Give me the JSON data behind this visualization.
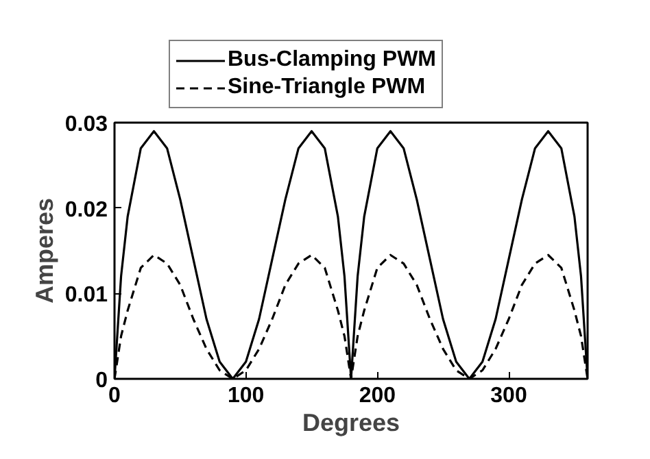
{
  "chart_data": {
    "type": "line",
    "xlabel": "Degrees",
    "ylabel": "Amperes",
    "x": [
      0,
      5,
      10,
      20,
      30,
      40,
      50,
      60,
      70,
      80,
      90,
      100,
      110,
      120,
      130,
      140,
      150,
      160,
      170,
      175,
      180,
      185,
      190,
      200,
      210,
      220,
      230,
      240,
      250,
      260,
      270,
      280,
      290,
      300,
      310,
      320,
      330,
      340,
      350,
      355,
      360
    ],
    "series": [
      {
        "name": "Bus-Clamping PWM",
        "color": "#000000",
        "line_style": "solid",
        "values": [
          0,
          0.012,
          0.019,
          0.027,
          0.029,
          0.027,
          0.021,
          0.014,
          0.007,
          0.002,
          0,
          0.002,
          0.007,
          0.014,
          0.021,
          0.027,
          0.029,
          0.027,
          0.019,
          0.012,
          0,
          0.012,
          0.019,
          0.027,
          0.029,
          0.027,
          0.021,
          0.014,
          0.007,
          0.002,
          0,
          0.002,
          0.007,
          0.014,
          0.021,
          0.027,
          0.029,
          0.027,
          0.019,
          0.012,
          0
        ]
      },
      {
        "name": "Sine-Triangle PWM",
        "color": "#000000",
        "line_style": "dashed",
        "values": [
          0,
          0.005,
          0.008,
          0.013,
          0.0145,
          0.0135,
          0.011,
          0.007,
          0.0035,
          0.001,
          0,
          0.001,
          0.0035,
          0.007,
          0.011,
          0.0135,
          0.0145,
          0.013,
          0.008,
          0.005,
          0,
          0.005,
          0.008,
          0.013,
          0.0145,
          0.0135,
          0.011,
          0.007,
          0.0035,
          0.001,
          0,
          0.001,
          0.0035,
          0.007,
          0.011,
          0.0135,
          0.0145,
          0.013,
          0.008,
          0.005,
          0
        ]
      }
    ],
    "xlim": [
      0,
      360
    ],
    "ylim": [
      0,
      0.03
    ],
    "xticks": [
      0,
      100,
      200,
      300
    ],
    "yticks": [
      0,
      0.01,
      0.02,
      0.03
    ],
    "grid": false,
    "legend": "top"
  }
}
